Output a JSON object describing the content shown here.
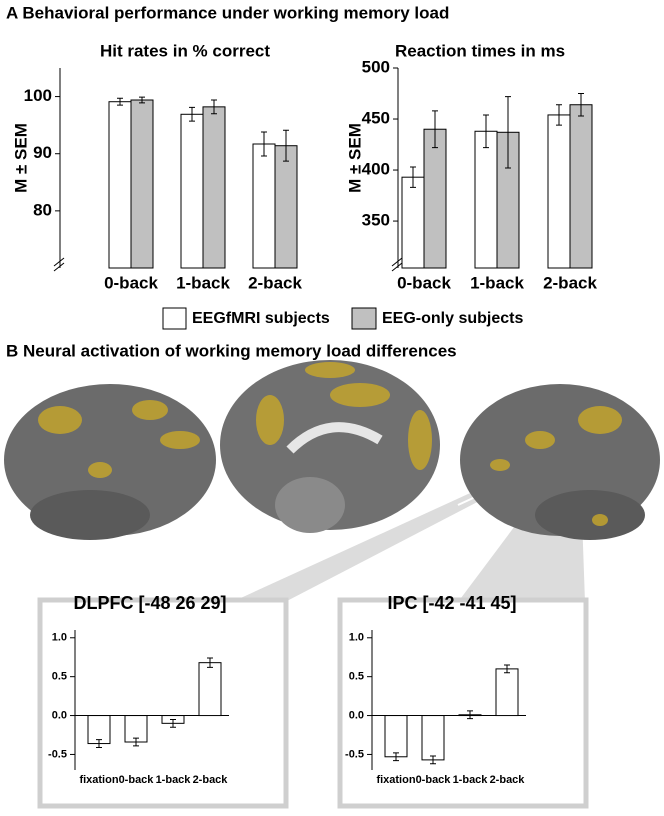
{
  "panel_a": "A Behavioral performance under working memory load",
  "panel_b": "B Neural activation of working memory load differences",
  "chart_data": [
    {
      "type": "bar",
      "title": "Hit rates in % correct",
      "y_label": "M ± SEM",
      "categories": [
        "0-back",
        "1-back",
        "2-back"
      ],
      "series": [
        {
          "name": "EEGfMRI subjects",
          "color": "#ffffff",
          "values": [
            99.1,
            96.9,
            91.7
          ],
          "errors": [
            0.6,
            1.2,
            2.1
          ]
        },
        {
          "name": "EEG-only subjects",
          "color": "#c0c0c0",
          "values": [
            99.4,
            98.2,
            91.4
          ],
          "errors": [
            0.5,
            1.2,
            2.7
          ]
        }
      ],
      "ylim": [
        70,
        105
      ],
      "yticks": [
        80,
        90,
        100
      ],
      "axis_break": true
    },
    {
      "type": "bar",
      "title": "Reaction times in ms",
      "y_label": "M ± SEM",
      "categories": [
        "0-back",
        "1-back",
        "2-back"
      ],
      "series": [
        {
          "color": "#ffffff",
          "values": [
            393,
            438,
            454
          ],
          "errors": [
            10,
            16,
            10
          ]
        },
        {
          "color": "#c0c0c0",
          "values": [
            440,
            437,
            464
          ],
          "errors": [
            18,
            35,
            11
          ]
        }
      ],
      "ylim": [
        304,
        500
      ],
      "yticks": [
        350,
        400,
        450,
        500
      ],
      "axis_break": true
    },
    {
      "type": "bar",
      "title": "DLPFC [-48 26 29]",
      "categories": [
        "fixation",
        "0-back",
        "1-back",
        "2-back"
      ],
      "series": [
        {
          "color": "#ffffff",
          "values": [
            -0.36,
            -0.34,
            -0.1,
            0.68
          ],
          "errors": [
            0.05,
            0.05,
            0.05,
            0.06
          ]
        }
      ],
      "ylim": [
        -0.7,
        1.1
      ],
      "yticks": [
        -0.5,
        {
          "value": 0,
          "label": "0.0"
        },
        0.5,
        {
          "value": 1,
          "label": "1.0"
        }
      ]
    },
    {
      "type": "bar",
      "title": "IPC [-42 -41 45]",
      "categories": [
        "fixation",
        "0-back",
        "1-back",
        "2-back"
      ],
      "series": [
        {
          "color": "#ffffff",
          "values": [
            -0.53,
            -0.57,
            0.01,
            0.6
          ],
          "errors": [
            0.05,
            0.05,
            0.05,
            0.05
          ]
        }
      ],
      "ylim": [
        -0.7,
        1.1
      ],
      "yticks": [
        -0.5,
        {
          "value": 0,
          "label": "0.0"
        },
        0.5,
        {
          "value": 1,
          "label": "1.0"
        }
      ]
    }
  ]
}
